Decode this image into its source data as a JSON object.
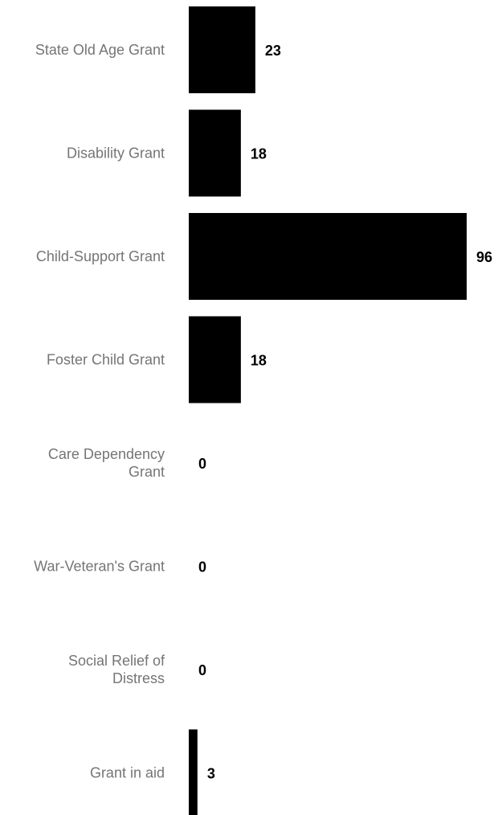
{
  "chart_data": {
    "type": "bar",
    "orientation": "horizontal",
    "categories": [
      "State Old Age Grant",
      "Disability Grant",
      "Child-Support Grant",
      "Foster Child Grant",
      "Care Dependency Grant",
      "War-Veteran's Grant",
      "Social Relief of Distress",
      "Grant in aid"
    ],
    "category_lines": [
      [
        "State Old Age Grant"
      ],
      [
        "Disability Grant"
      ],
      [
        "Child-Support Grant"
      ],
      [
        "Foster Child Grant"
      ],
      [
        "Care Dependency",
        "Grant"
      ],
      [
        "War-Veteran's Grant"
      ],
      [
        "Social Relief of",
        "Distress"
      ],
      [
        "Grant in aid"
      ]
    ],
    "values": [
      23,
      18,
      96,
      18,
      0,
      0,
      0,
      3
    ],
    "value_labels": [
      "23",
      "18",
      "96",
      "18",
      "0",
      "0",
      "0",
      "3"
    ],
    "xlim": [
      0,
      96
    ],
    "grid": false,
    "legend": "none",
    "bar_color": "#000000",
    "label_color": "#757575",
    "value_label_color": "#000000"
  }
}
